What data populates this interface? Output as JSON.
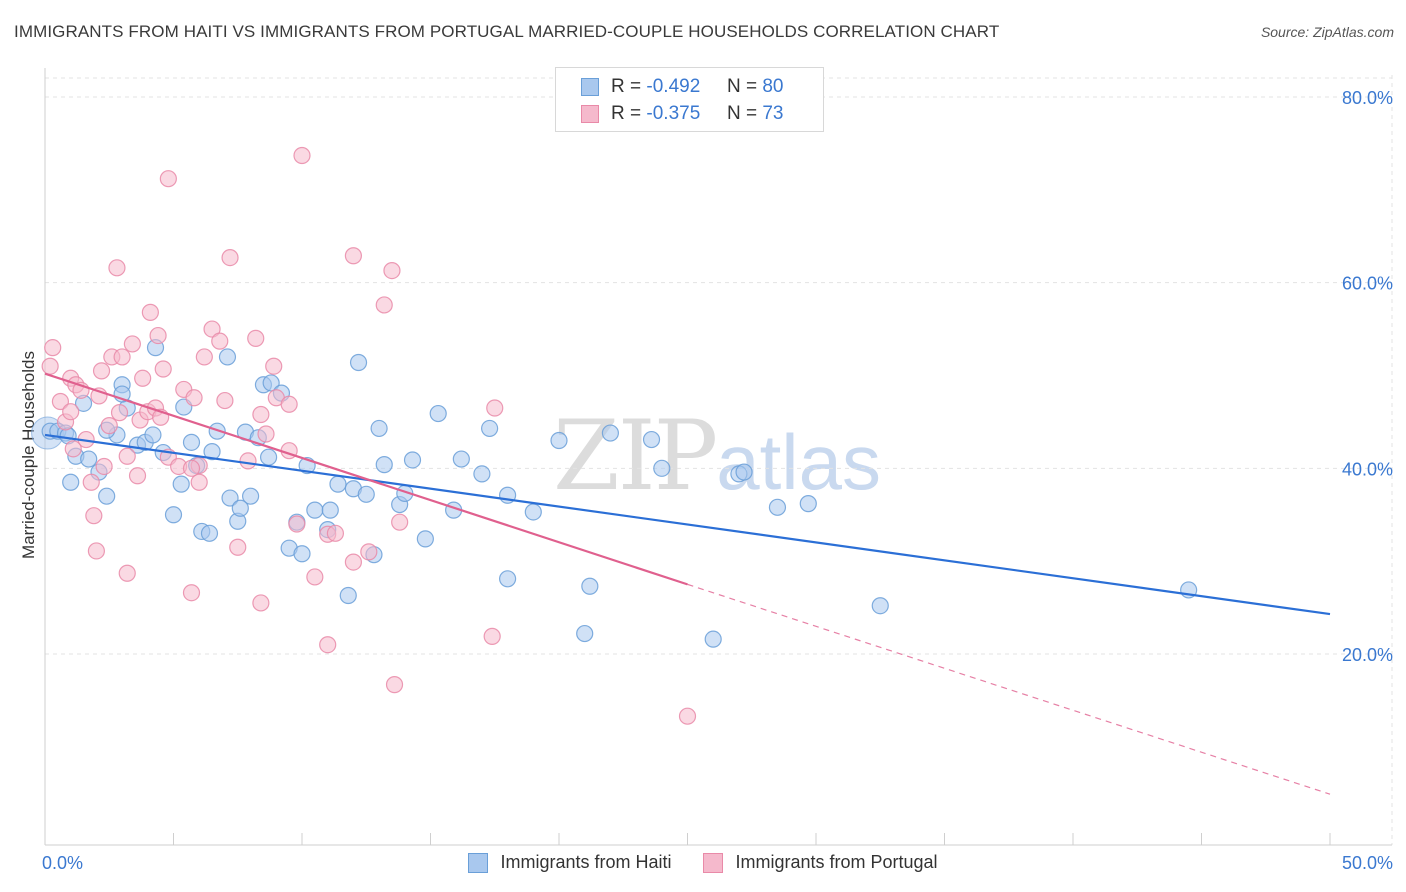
{
  "header": {
    "title": "IMMIGRANTS FROM HAITI VS IMMIGRANTS FROM PORTUGAL MARRIED-COUPLE HOUSEHOLDS CORRELATION CHART",
    "source": "Source: ZipAtlas.com"
  },
  "watermark": {
    "zip": "ZIP",
    "atlas": "atlas"
  },
  "stats": {
    "haiti": {
      "r_label": "R =",
      "r_value": "-0.492",
      "n_label": "N =",
      "n_value": "80"
    },
    "portugal": {
      "r_label": "R =",
      "r_value": "-0.375",
      "n_label": "N =",
      "n_value": "73"
    }
  },
  "legend": {
    "haiti": "Immigrants from Haiti",
    "portugal": "Immigrants from Portugal"
  },
  "colors": {
    "haiti_fill": "#a9c8ee",
    "haiti_stroke": "#6a9fd8",
    "haiti_line": "#2b6fd6",
    "portugal_fill": "#f5b9cc",
    "portugal_stroke": "#e98aa8",
    "portugal_line": "#e0608e",
    "axis_tick_text": "#3a78d0",
    "grid": "#e3e3e3"
  },
  "chart_data": {
    "type": "scatter",
    "title": "IMMIGRANTS FROM HAITI VS IMMIGRANTS FROM PORTUGAL MARRIED-COUPLE HOUSEHOLDS CORRELATION CHART",
    "xlabel": "",
    "ylabel": "Married-couple Households",
    "xlim": [
      0,
      50
    ],
    "ylim": [
      0,
      82
    ],
    "x_tick_labels": [
      "0.0%",
      "50.0%"
    ],
    "y_ticks": [
      20,
      40,
      60,
      80
    ],
    "y_tick_labels": [
      "20.0%",
      "40.0%",
      "60.0%",
      "80.0%"
    ],
    "grid": true,
    "legend_position": "bottom-center",
    "series": [
      {
        "name": "Immigrants from Haiti",
        "r": -0.492,
        "n": 80,
        "trend": {
          "x": [
            0,
            50
          ],
          "y": [
            43.6,
            24.3
          ],
          "style": "solid"
        },
        "points": [
          [
            0.2,
            44
          ],
          [
            0.5,
            44
          ],
          [
            0.8,
            43.8
          ],
          [
            1.0,
            38.5
          ],
          [
            1.2,
            41.3
          ],
          [
            1.5,
            47
          ],
          [
            1.7,
            41
          ],
          [
            2.1,
            39.6
          ],
          [
            2.4,
            37
          ],
          [
            2.8,
            43.6
          ],
          [
            3.0,
            49
          ],
          [
            3.2,
            46.5
          ],
          [
            3.6,
            42.5
          ],
          [
            3.9,
            42.8
          ],
          [
            4.2,
            43.6
          ],
          [
            4.3,
            53
          ],
          [
            4.6,
            41.7
          ],
          [
            5.0,
            35
          ],
          [
            5.3,
            38.3
          ],
          [
            5.4,
            46.6
          ],
          [
            5.7,
            42.8
          ],
          [
            5.9,
            40.3
          ],
          [
            6.1,
            33.2
          ],
          [
            6.4,
            33
          ],
          [
            6.5,
            41.8
          ],
          [
            6.7,
            44
          ],
          [
            7.1,
            52
          ],
          [
            7.2,
            36.8
          ],
          [
            7.5,
            34.3
          ],
          [
            7.8,
            43.9
          ],
          [
            8.0,
            37
          ],
          [
            8.3,
            43.3
          ],
          [
            8.5,
            49
          ],
          [
            8.7,
            41.2
          ],
          [
            8.8,
            49.2
          ],
          [
            9.2,
            48.1
          ],
          [
            9.5,
            31.4
          ],
          [
            9.8,
            34.2
          ],
          [
            10.0,
            30.8
          ],
          [
            10.2,
            40.3
          ],
          [
            10.5,
            35.5
          ],
          [
            11.0,
            33.4
          ],
          [
            11.1,
            35.5
          ],
          [
            11.4,
            38.3
          ],
          [
            11.8,
            26.3
          ],
          [
            12.0,
            37.8
          ],
          [
            12.2,
            51.4
          ],
          [
            12.5,
            37.2
          ],
          [
            12.8,
            30.7
          ],
          [
            13.0,
            44.3
          ],
          [
            13.2,
            40.4
          ],
          [
            13.8,
            36.1
          ],
          [
            14.0,
            37.3
          ],
          [
            14.3,
            40.9
          ],
          [
            14.8,
            32.4
          ],
          [
            15.3,
            45.9
          ],
          [
            15.9,
            35.5
          ],
          [
            17.0,
            39.4
          ],
          [
            17.3,
            44.3
          ],
          [
            18.0,
            37.1
          ],
          [
            18.0,
            28.1
          ],
          [
            19.0,
            35.3
          ],
          [
            20.0,
            43
          ],
          [
            21.0,
            22.2
          ],
          [
            21.2,
            27.3
          ],
          [
            22.0,
            43.8
          ],
          [
            23.6,
            43.1
          ],
          [
            26.0,
            21.6
          ],
          [
            27.0,
            39.4
          ],
          [
            27.2,
            39.6
          ],
          [
            28.5,
            35.8
          ],
          [
            29.7,
            36.2
          ],
          [
            32.5,
            25.2
          ],
          [
            44.5,
            26.9
          ],
          [
            24.0,
            40.0
          ],
          [
            7.6,
            35.7
          ],
          [
            3.0,
            48
          ],
          [
            0.9,
            43.5
          ],
          [
            16.2,
            41
          ],
          [
            2.4,
            44.1
          ]
        ]
      },
      {
        "name": "Immigrants from Portugal",
        "r": -0.375,
        "n": 73,
        "trend": {
          "x": [
            0,
            25
          ],
          "y": [
            50.2,
            27.5
          ],
          "dashed_extension": {
            "x": [
              25,
              50
            ],
            "y": [
              27.5,
              4.9
            ]
          }
        },
        "points": [
          [
            0.2,
            51
          ],
          [
            0.3,
            53
          ],
          [
            0.6,
            47.2
          ],
          [
            0.8,
            45
          ],
          [
            1.0,
            46.1
          ],
          [
            1.0,
            49.7
          ],
          [
            1.2,
            49
          ],
          [
            1.4,
            48.4
          ],
          [
            1.6,
            43.1
          ],
          [
            1.8,
            38.5
          ],
          [
            1.9,
            34.9
          ],
          [
            2.0,
            31.1
          ],
          [
            2.1,
            47.8
          ],
          [
            2.2,
            50.5
          ],
          [
            2.5,
            44.6
          ],
          [
            2.6,
            52
          ],
          [
            2.8,
            61.6
          ],
          [
            3.0,
            52
          ],
          [
            3.2,
            41.3
          ],
          [
            3.2,
            28.7
          ],
          [
            3.4,
            53.4
          ],
          [
            3.6,
            39.2
          ],
          [
            3.7,
            45.2
          ],
          [
            3.8,
            49.7
          ],
          [
            4.0,
            46.1
          ],
          [
            4.1,
            56.8
          ],
          [
            4.3,
            46.5
          ],
          [
            4.4,
            54.3
          ],
          [
            4.6,
            50.7
          ],
          [
            4.8,
            41.2
          ],
          [
            4.8,
            71.2
          ],
          [
            5.2,
            40.2
          ],
          [
            5.4,
            48.5
          ],
          [
            5.7,
            26.6
          ],
          [
            5.8,
            47.6
          ],
          [
            6.0,
            40.3
          ],
          [
            6.2,
            52
          ],
          [
            6.5,
            55
          ],
          [
            6.8,
            53.7
          ],
          [
            7.0,
            47.3
          ],
          [
            7.2,
            62.7
          ],
          [
            7.5,
            31.5
          ],
          [
            7.9,
            40.8
          ],
          [
            8.2,
            54
          ],
          [
            8.4,
            25.5
          ],
          [
            8.6,
            43.7
          ],
          [
            8.9,
            51
          ],
          [
            9.0,
            47.6
          ],
          [
            9.5,
            41.9
          ],
          [
            9.8,
            34
          ],
          [
            10.0,
            73.7
          ],
          [
            10.5,
            28.3
          ],
          [
            11.0,
            21
          ],
          [
            11.0,
            32.9
          ],
          [
            11.3,
            33
          ],
          [
            12.0,
            62.9
          ],
          [
            12.0,
            29.9
          ],
          [
            12.6,
            31
          ],
          [
            13.2,
            57.6
          ],
          [
            13.5,
            61.3
          ],
          [
            13.6,
            16.7
          ],
          [
            13.8,
            34.2
          ],
          [
            17.4,
            21.9
          ],
          [
            17.5,
            46.5
          ],
          [
            25.0,
            13.3
          ],
          [
            6.0,
            38.5
          ],
          [
            2.9,
            46
          ],
          [
            1.1,
            42.1
          ],
          [
            4.5,
            45.5
          ],
          [
            5.7,
            40
          ],
          [
            8.4,
            45.8
          ],
          [
            9.5,
            46.9
          ],
          [
            2.3,
            40.2
          ]
        ]
      }
    ]
  }
}
